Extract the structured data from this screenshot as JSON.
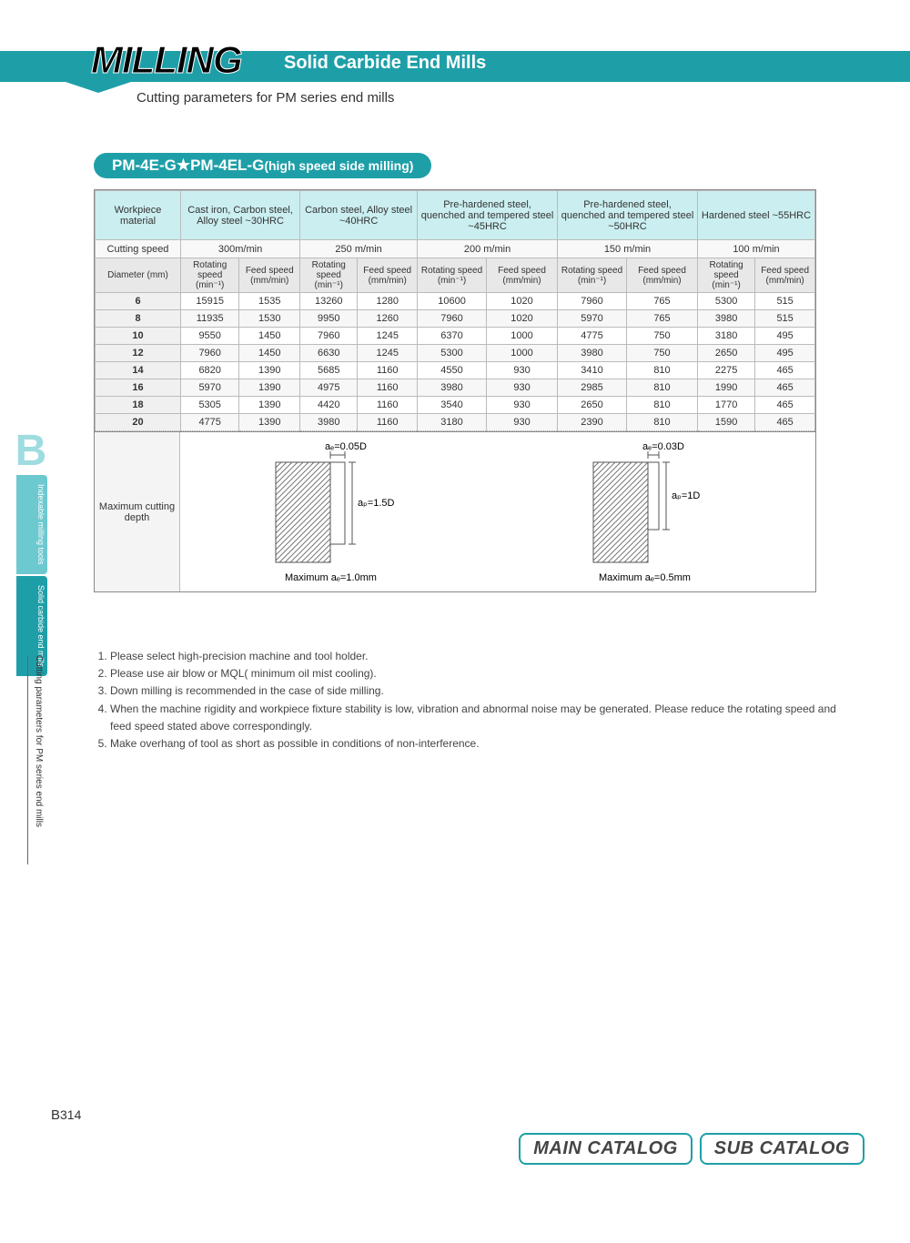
{
  "header": {
    "brand": "MILLING",
    "title": "Solid Carbide End Mills",
    "subtitle": "Cutting parameters for PM series end mills",
    "banner_color": "#1e9fa8"
  },
  "pill": {
    "main": "PM-4E-G★PM-4EL-G",
    "suffix": "(high speed side milling)"
  },
  "table": {
    "workpiece_label": "Workpiece material",
    "materials": [
      "Cast iron, Carbon steel, Alloy steel ~30HRC",
      "Carbon steel, Alloy steel ~40HRC",
      "Pre-hardened steel, quenched and tempered steel ~45HRC",
      "Pre-hardened steel, quenched and tempered steel ~50HRC",
      "Hardened steel ~55HRC"
    ],
    "cutting_speed_label": "Cutting speed",
    "cutting_speeds": [
      "300m/min",
      "250 m/min",
      "200 m/min",
      "150 m/min",
      "100 m/min"
    ],
    "diameter_label": "Diameter (mm)",
    "col_pair": [
      "Rotating speed (min⁻¹)",
      "Feed speed (mm/min)"
    ],
    "rows": [
      {
        "d": "6",
        "v": [
          "15915",
          "1535",
          "13260",
          "1280",
          "10600",
          "1020",
          "7960",
          "765",
          "5300",
          "515"
        ]
      },
      {
        "d": "8",
        "v": [
          "11935",
          "1530",
          "9950",
          "1260",
          "7960",
          "1020",
          "5970",
          "765",
          "3980",
          "515"
        ]
      },
      {
        "d": "10",
        "v": [
          "9550",
          "1450",
          "7960",
          "1245",
          "6370",
          "1000",
          "4775",
          "750",
          "3180",
          "495"
        ]
      },
      {
        "d": "12",
        "v": [
          "7960",
          "1450",
          "6630",
          "1245",
          "5300",
          "1000",
          "3980",
          "750",
          "2650",
          "495"
        ]
      },
      {
        "d": "14",
        "v": [
          "6820",
          "1390",
          "5685",
          "1160",
          "4550",
          "930",
          "3410",
          "810",
          "2275",
          "465"
        ]
      },
      {
        "d": "16",
        "v": [
          "5970",
          "1390",
          "4975",
          "1160",
          "3980",
          "930",
          "2985",
          "810",
          "1990",
          "465"
        ]
      },
      {
        "d": "18",
        "v": [
          "5305",
          "1390",
          "4420",
          "1160",
          "3540",
          "930",
          "2650",
          "810",
          "1770",
          "465"
        ]
      },
      {
        "d": "20",
        "v": [
          "4775",
          "1390",
          "3980",
          "1160",
          "3180",
          "930",
          "2390",
          "810",
          "1590",
          "465"
        ]
      }
    ],
    "depth_label": "Maximum cutting depth",
    "depth_left": {
      "ae": "aₑ=0.05D",
      "ap": "aₚ=1.5D",
      "max": "Maximum aₑ=1.0mm"
    },
    "depth_right": {
      "ae": "aₑ=0.03D",
      "ap": "aₚ=1D",
      "max": "Maximum aₑ=0.5mm"
    }
  },
  "notes": [
    "Please select high-precision machine and tool holder.",
    "Please use air blow or MQL( minimum oil mist cooling).",
    "Down milling is recommended in the case of side milling.",
    "When the machine rigidity and workpiece fixture stability is low, vibration and abnormal noise may be generated. Please reduce the rotating speed and feed speed stated above correspondingly.",
    "Make overhang of tool as short as possible in conditions of non-interference."
  ],
  "side": {
    "letter": "B",
    "tab1": "Indexable milling tools",
    "tab2": "Solid carbide end mills",
    "label": "Cutting parameters for PM series end mills"
  },
  "footer": {
    "page": "B314",
    "btn1": "MAIN CATALOG",
    "btn2": "SUB CATALOG"
  }
}
